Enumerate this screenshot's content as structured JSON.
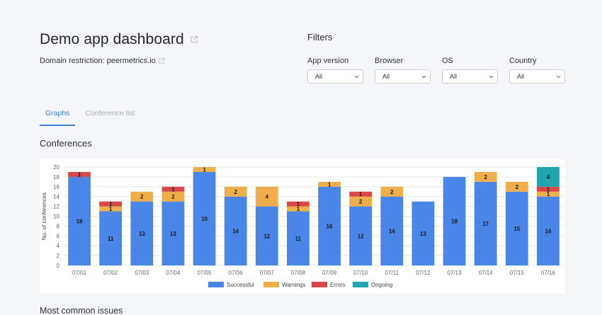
{
  "header": {
    "title": "Demo app dashboard",
    "domain_label": "Domain restriction:",
    "domain_value": "peermetrics.io"
  },
  "filters": {
    "title": "Filters",
    "items": [
      {
        "label": "App version",
        "value": "All"
      },
      {
        "label": "Browser",
        "value": "All"
      },
      {
        "label": "OS",
        "value": "All"
      },
      {
        "label": "Country",
        "value": "All"
      }
    ]
  },
  "tabs": [
    {
      "label": "Graphs",
      "active": true
    },
    {
      "label": "Conference list",
      "active": false
    }
  ],
  "sections": {
    "conferences": "Conferences",
    "issues": "Most common issues"
  },
  "colors": {
    "successful": "#4a86e8",
    "warnings": "#eeaf4b",
    "errors": "#d94747",
    "ongoing": "#1ea5ae",
    "accent": "#3b7fd9"
  },
  "icons": {
    "external_link": "external-link-icon",
    "chevron": "chevron-down-icon"
  },
  "chart_data": {
    "type": "bar",
    "stacked": true,
    "ylabel": "No. of conferences",
    "xlabel": "",
    "ylim": [
      0,
      20
    ],
    "yticks": [
      0,
      2,
      4,
      6,
      8,
      10,
      12,
      14,
      16,
      18,
      20
    ],
    "grid": true,
    "legend": "bottom",
    "categories": [
      "07/01",
      "07/02",
      "07/03",
      "07/04",
      "07/05",
      "07/06",
      "07/07",
      "07/08",
      "07/09",
      "07/10",
      "07/11",
      "07/12",
      "07/13",
      "07/14",
      "07/15",
      "07/16"
    ],
    "series": [
      {
        "name": "Successful",
        "values": [
          18,
          11,
          13,
          13,
          19,
          14,
          12,
          11,
          16,
          12,
          14,
          13,
          18,
          17,
          15,
          14
        ]
      },
      {
        "name": "Warnings",
        "values": [
          0,
          1,
          2,
          2,
          1,
          2,
          4,
          1,
          1,
          2,
          2,
          0,
          0,
          2,
          2,
          1
        ]
      },
      {
        "name": "Errors",
        "values": [
          1,
          1,
          0,
          1,
          0,
          0,
          0,
          1,
          0,
          1,
          0,
          0,
          0,
          0,
          0,
          1
        ]
      },
      {
        "name": "Ongoing",
        "values": [
          0,
          0,
          0,
          0,
          0,
          0,
          0,
          0,
          0,
          0,
          0,
          0,
          0,
          0,
          0,
          4
        ]
      }
    ]
  }
}
